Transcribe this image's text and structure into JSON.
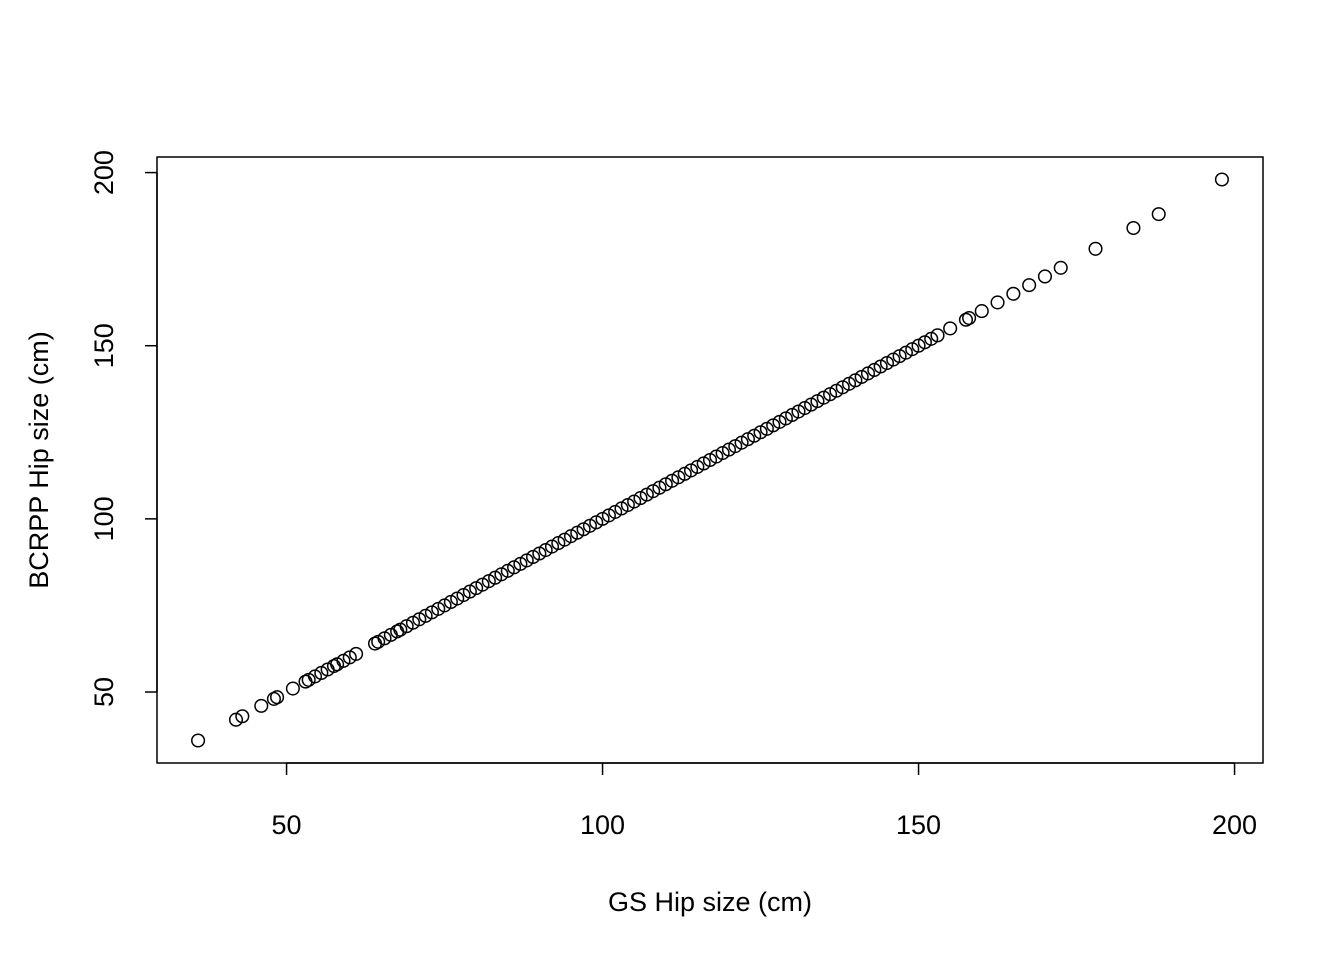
{
  "chart_data": {
    "type": "scatter",
    "title": "",
    "xlabel": "GS Hip size (cm)",
    "ylabel": "BCRPP Hip size (cm)",
    "xlim": [
      29.5,
      204.5
    ],
    "ylim": [
      29.5,
      204.5
    ],
    "xticks": [
      50,
      100,
      150,
      200
    ],
    "yticks": [
      50,
      100,
      150,
      200
    ],
    "grid": false,
    "marker": "open-circle",
    "color": "#000000",
    "points": [
      [
        36,
        36
      ],
      [
        42,
        42
      ],
      [
        43,
        43
      ],
      [
        46,
        46
      ],
      [
        48,
        48
      ],
      [
        48.5,
        48.5
      ],
      [
        51,
        51
      ],
      [
        53,
        53
      ],
      [
        53.5,
        53.5
      ],
      [
        54.5,
        54.5
      ],
      [
        55.5,
        55.5
      ],
      [
        56.5,
        56.5
      ],
      [
        57.5,
        57.5
      ],
      [
        58,
        58
      ],
      [
        59,
        59
      ],
      [
        60,
        60
      ],
      [
        61,
        61
      ],
      [
        64,
        64
      ],
      [
        64.5,
        64.5
      ],
      [
        65.5,
        65.5
      ],
      [
        66.5,
        66.5
      ],
      [
        67.5,
        67.5
      ],
      [
        68,
        68
      ],
      [
        69,
        69
      ],
      [
        70,
        70
      ],
      [
        71,
        71
      ],
      [
        72,
        72
      ],
      [
        73,
        73
      ],
      [
        74,
        74
      ],
      [
        75,
        75
      ],
      [
        76,
        76
      ],
      [
        77,
        77
      ],
      [
        78,
        78
      ],
      [
        79,
        79
      ],
      [
        80,
        80
      ],
      [
        81,
        81
      ],
      [
        82,
        82
      ],
      [
        83,
        83
      ],
      [
        84,
        84
      ],
      [
        85,
        85
      ],
      [
        86,
        86
      ],
      [
        87,
        87
      ],
      [
        88,
        88
      ],
      [
        89,
        89
      ],
      [
        90,
        90
      ],
      [
        91,
        91
      ],
      [
        92,
        92
      ],
      [
        93,
        93
      ],
      [
        94,
        94
      ],
      [
        95,
        95
      ],
      [
        96,
        96
      ],
      [
        97,
        97
      ],
      [
        98,
        98
      ],
      [
        99,
        99
      ],
      [
        100,
        100
      ],
      [
        101,
        101
      ],
      [
        102,
        102
      ],
      [
        103,
        103
      ],
      [
        104,
        104
      ],
      [
        105,
        105
      ],
      [
        106,
        106
      ],
      [
        107,
        107
      ],
      [
        108,
        108
      ],
      [
        109,
        109
      ],
      [
        110,
        110
      ],
      [
        111,
        111
      ],
      [
        112,
        112
      ],
      [
        113,
        113
      ],
      [
        114,
        114
      ],
      [
        115,
        115
      ],
      [
        116,
        116
      ],
      [
        117,
        117
      ],
      [
        118,
        118
      ],
      [
        119,
        119
      ],
      [
        120,
        120
      ],
      [
        121,
        121
      ],
      [
        122,
        122
      ],
      [
        123,
        123
      ],
      [
        124,
        124
      ],
      [
        125,
        125
      ],
      [
        126,
        126
      ],
      [
        127,
        127
      ],
      [
        128,
        128
      ],
      [
        129,
        129
      ],
      [
        130,
        130
      ],
      [
        131,
        131
      ],
      [
        132,
        132
      ],
      [
        133,
        133
      ],
      [
        134,
        134
      ],
      [
        135,
        135
      ],
      [
        136,
        136
      ],
      [
        137,
        137
      ],
      [
        138,
        138
      ],
      [
        139,
        139
      ],
      [
        140,
        140
      ],
      [
        141,
        141
      ],
      [
        142,
        142
      ],
      [
        143,
        143
      ],
      [
        144,
        144
      ],
      [
        145,
        145
      ],
      [
        146,
        146
      ],
      [
        147,
        147
      ],
      [
        148,
        148
      ],
      [
        149,
        149
      ],
      [
        150,
        150
      ],
      [
        151,
        151
      ],
      [
        152,
        152
      ],
      [
        153,
        153
      ],
      [
        155,
        155
      ],
      [
        157.5,
        157.5
      ],
      [
        158,
        158
      ],
      [
        160,
        160
      ],
      [
        162.5,
        162.5
      ],
      [
        165,
        165
      ],
      [
        167.5,
        167.5
      ],
      [
        170,
        170
      ],
      [
        172.5,
        172.5
      ],
      [
        178,
        178
      ],
      [
        184,
        184
      ],
      [
        188,
        188
      ],
      [
        198,
        198
      ]
    ]
  }
}
